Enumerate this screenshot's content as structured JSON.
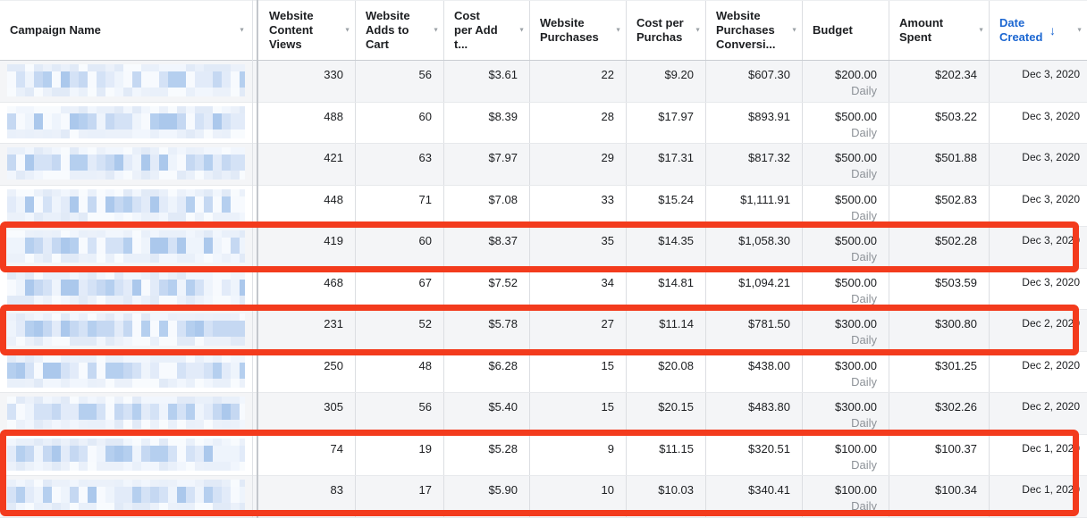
{
  "colors": {
    "accent_blue": "#1b66d1",
    "annotation_red": "#f33b1d",
    "alt_row_bg": "#f4f5f7",
    "redaction_blue_main": "#b5cfef",
    "redaction_blue_light": "#e9f0fa"
  },
  "redaction": {
    "palette_main": [
      "#b5cfef",
      "#c5d8f2",
      "#d4e2f6",
      "#e2ebf9",
      "#eef4fc",
      "#f7fafe",
      "#abc8ec"
    ],
    "palette_light": [
      "#e9f0fa",
      "#f1f6fd",
      "#e1eaf7",
      "#f8fbfe",
      "#ebf1fa"
    ]
  },
  "table": {
    "header": {
      "columns": [
        {
          "id": "campaign_name",
          "label": "Campaign Name",
          "sortable": true
        },
        {
          "id": "content_views",
          "label": "Website Content Views",
          "sortable": true
        },
        {
          "id": "adds_to_cart",
          "label": "Website Adds to Cart",
          "sortable": true
        },
        {
          "id": "cost_per_add_to_cart",
          "label": "Cost per Add t...",
          "sortable": true
        },
        {
          "id": "purchases",
          "label": "Website Purchases",
          "sortable": true
        },
        {
          "id": "cost_per_purchase",
          "label": "Cost per Purchas",
          "sortable": true
        },
        {
          "id": "purchases_conversion_value",
          "label": "Website Purchases Conversi...",
          "sortable": true
        },
        {
          "id": "budget",
          "label": "Budget",
          "sortable": false
        },
        {
          "id": "amount_spent",
          "label": "Amount Spent",
          "sortable": true
        },
        {
          "id": "date_created",
          "label": "Date Created",
          "sortable": true,
          "sort_active": true,
          "sort_direction": "descending"
        }
      ]
    },
    "rows": [
      {
        "campaign_name_redacted": true,
        "content_views": "330",
        "adds_to_cart": "56",
        "cost_per_add_to_cart": "$3.61",
        "purchases": "22",
        "cost_per_purchase": "$9.20",
        "purchases_conversion_value": "$607.30",
        "budget": "$200.00",
        "budget_type": "Daily",
        "amount_spent": "$202.34",
        "date_created": "Dec 3, 2020",
        "highlighted": false
      },
      {
        "campaign_name_redacted": true,
        "content_views": "488",
        "adds_to_cart": "60",
        "cost_per_add_to_cart": "$8.39",
        "purchases": "28",
        "cost_per_purchase": "$17.97",
        "purchases_conversion_value": "$893.91",
        "budget": "$500.00",
        "budget_type": "Daily",
        "amount_spent": "$503.22",
        "date_created": "Dec 3, 2020",
        "highlighted": false
      },
      {
        "campaign_name_redacted": true,
        "content_views": "421",
        "adds_to_cart": "63",
        "cost_per_add_to_cart": "$7.97",
        "purchases": "29",
        "cost_per_purchase": "$17.31",
        "purchases_conversion_value": "$817.32",
        "budget": "$500.00",
        "budget_type": "Daily",
        "amount_spent": "$501.88",
        "date_created": "Dec 3, 2020",
        "highlighted": false
      },
      {
        "campaign_name_redacted": true,
        "content_views": "448",
        "adds_to_cart": "71",
        "cost_per_add_to_cart": "$7.08",
        "purchases": "33",
        "cost_per_purchase": "$15.24",
        "purchases_conversion_value": "$1,111.91",
        "budget": "$500.00",
        "budget_type": "Daily",
        "amount_spent": "$502.83",
        "date_created": "Dec 3, 2020",
        "highlighted": false
      },
      {
        "campaign_name_redacted": true,
        "content_views": "419",
        "adds_to_cart": "60",
        "cost_per_add_to_cart": "$8.37",
        "purchases": "35",
        "cost_per_purchase": "$14.35",
        "purchases_conversion_value": "$1,058.30",
        "budget": "$500.00",
        "budget_type": "Daily",
        "amount_spent": "$502.28",
        "date_created": "Dec 3, 2020",
        "highlighted": true
      },
      {
        "campaign_name_redacted": true,
        "content_views": "468",
        "adds_to_cart": "67",
        "cost_per_add_to_cart": "$7.52",
        "purchases": "34",
        "cost_per_purchase": "$14.81",
        "purchases_conversion_value": "$1,094.21",
        "budget": "$500.00",
        "budget_type": "Daily",
        "amount_spent": "$503.59",
        "date_created": "Dec 3, 2020",
        "highlighted": false
      },
      {
        "campaign_name_redacted": true,
        "content_views": "231",
        "adds_to_cart": "52",
        "cost_per_add_to_cart": "$5.78",
        "purchases": "27",
        "cost_per_purchase": "$11.14",
        "purchases_conversion_value": "$781.50",
        "budget": "$300.00",
        "budget_type": "Daily",
        "amount_spent": "$300.80",
        "date_created": "Dec 2, 2020",
        "highlighted": true
      },
      {
        "campaign_name_redacted": true,
        "content_views": "250",
        "adds_to_cart": "48",
        "cost_per_add_to_cart": "$6.28",
        "purchases": "15",
        "cost_per_purchase": "$20.08",
        "purchases_conversion_value": "$438.00",
        "budget": "$300.00",
        "budget_type": "Daily",
        "amount_spent": "$301.25",
        "date_created": "Dec 2, 2020",
        "highlighted": false
      },
      {
        "campaign_name_redacted": true,
        "content_views": "305",
        "adds_to_cart": "56",
        "cost_per_add_to_cart": "$5.40",
        "purchases": "15",
        "cost_per_purchase": "$20.15",
        "purchases_conversion_value": "$483.80",
        "budget": "$300.00",
        "budget_type": "Daily",
        "amount_spent": "$302.26",
        "date_created": "Dec 2, 2020",
        "highlighted": false
      },
      {
        "campaign_name_redacted": true,
        "content_views": "74",
        "adds_to_cart": "19",
        "cost_per_add_to_cart": "$5.28",
        "purchases": "9",
        "cost_per_purchase": "$11.15",
        "purchases_conversion_value": "$320.51",
        "budget": "$100.00",
        "budget_type": "Daily",
        "amount_spent": "$100.37",
        "date_created": "Dec 1, 2020",
        "highlighted": true
      },
      {
        "campaign_name_redacted": true,
        "content_views": "83",
        "adds_to_cart": "17",
        "cost_per_add_to_cart": "$5.90",
        "purchases": "10",
        "cost_per_purchase": "$10.03",
        "purchases_conversion_value": "$340.41",
        "budget": "$100.00",
        "budget_type": "Daily",
        "amount_spent": "$100.34",
        "date_created": "Dec 1, 2020",
        "highlighted": true
      }
    ]
  },
  "annotations": {
    "color": "#f33b1d",
    "highlighted_row_numbers": [
      5,
      7,
      10,
      11
    ],
    "boxes": [
      {
        "rows": [
          5
        ]
      },
      {
        "rows": [
          7
        ]
      },
      {
        "rows": [
          10,
          11
        ]
      }
    ]
  }
}
